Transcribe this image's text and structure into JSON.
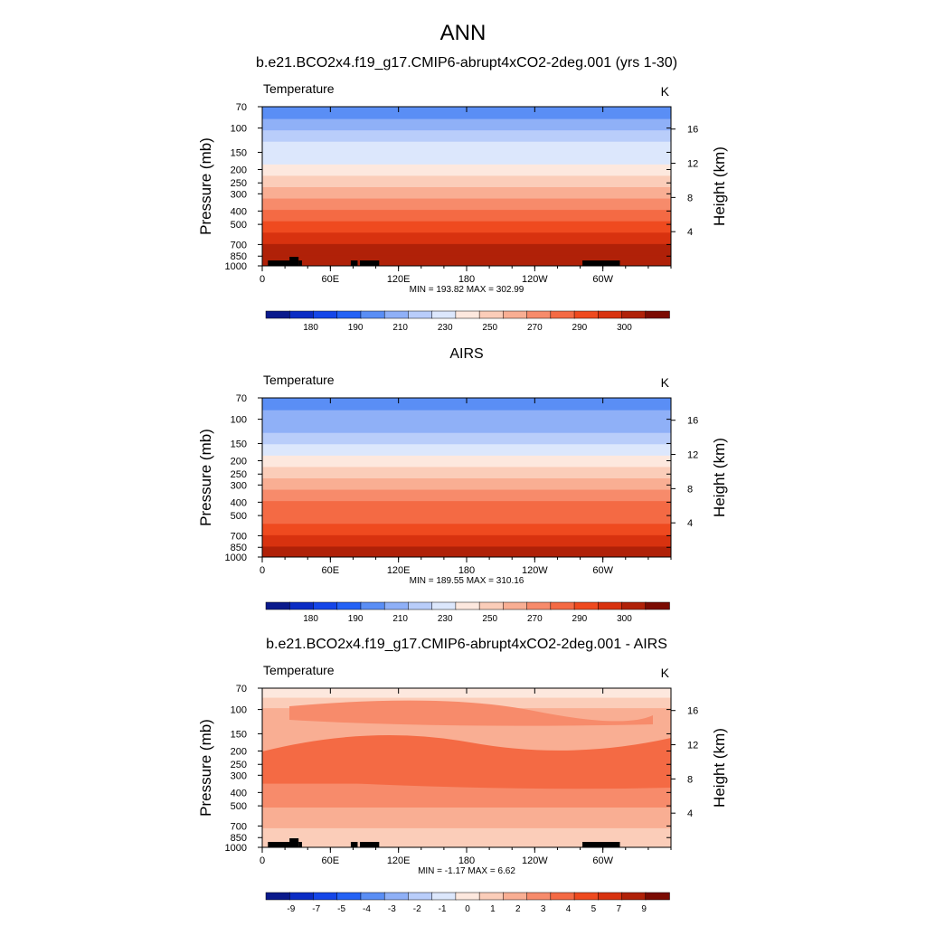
{
  "figure": {
    "title": "ANN"
  },
  "colors": {
    "temperature_levels": [
      "#0a1a8c",
      "#0b2cc4",
      "#1546e8",
      "#2462f5",
      "#5a8ef5",
      "#8fb0f7",
      "#b9cdfa",
      "#dce7fc",
      "#fde8de",
      "#fbcdb9",
      "#f9ae93",
      "#f78b6b",
      "#f46a44",
      "#ef4a1f",
      "#d8320f",
      "#b02108",
      "#7b0b02"
    ],
    "diff_levels": [
      "#0a1a8c",
      "#0b2cc4",
      "#1546e8",
      "#2462f5",
      "#5a8ef5",
      "#8fb0f7",
      "#b9cdfa",
      "#dce7fc",
      "#fde8de",
      "#fbcdb9",
      "#f9ae93",
      "#f78b6b",
      "#f46a44",
      "#ef4a1f",
      "#d8320f",
      "#b02108",
      "#7b0b02"
    ],
    "land": "#000000"
  },
  "chart_data": [
    {
      "type": "heatmap",
      "title": "b.e21.BCO2x4.f19_g17.CMIP6-abrupt4xCO2-2deg.001 (yrs 1-30)",
      "variable_label": "Temperature",
      "units": "K",
      "xlabel": "",
      "ylabel": "Pressure (mb)",
      "ylabel_right": "Height (km)",
      "x_ticks": [
        "0",
        "60E",
        "120E",
        "180",
        "120W",
        "60W"
      ],
      "x_tick_values": [
        0,
        60,
        120,
        180,
        240,
        300
      ],
      "xlim": [
        0,
        360
      ],
      "y_ticks": [
        "70",
        "100",
        "150",
        "200",
        "250",
        "300",
        "400",
        "500",
        "700",
        "850",
        "1000"
      ],
      "y_tick_values": [
        70,
        100,
        150,
        200,
        250,
        300,
        400,
        500,
        700,
        850,
        1000
      ],
      "ylim": [
        1000,
        70
      ],
      "y_right_ticks": [
        "4",
        "8",
        "12",
        "16"
      ],
      "y_right_values": [
        4,
        8,
        12,
        16
      ],
      "min_label": "MIN = 193.82  MAX = 302.99",
      "min": 193.82,
      "max": 302.99,
      "colorbar_labels": [
        "180",
        "190",
        "210",
        "230",
        "250",
        "270",
        "290",
        "300"
      ],
      "field": "abs",
      "bottom_value": 296,
      "top_value": 198,
      "land_mask": true,
      "anomaly": false
    },
    {
      "type": "heatmap",
      "title": "AIRS",
      "variable_label": "Temperature",
      "units": "K",
      "xlabel": "",
      "ylabel": "Pressure (mb)",
      "ylabel_right": "Height (km)",
      "x_ticks": [
        "0",
        "60E",
        "120E",
        "180",
        "120W",
        "60W"
      ],
      "x_tick_values": [
        0,
        60,
        120,
        180,
        240,
        300
      ],
      "xlim": [
        0,
        360
      ],
      "y_ticks": [
        "70",
        "100",
        "150",
        "200",
        "250",
        "300",
        "400",
        "500",
        "700",
        "850",
        "1000"
      ],
      "y_tick_values": [
        70,
        100,
        150,
        200,
        250,
        300,
        400,
        500,
        700,
        850,
        1000
      ],
      "ylim": [
        1000,
        70
      ],
      "y_right_ticks": [
        "4",
        "8",
        "12",
        "16"
      ],
      "y_right_values": [
        4,
        8,
        12,
        16
      ],
      "min_label": "MIN = 189.55  MAX = 310.16",
      "min": 189.55,
      "max": 310.16,
      "colorbar_labels": [
        "180",
        "190",
        "210",
        "230",
        "250",
        "270",
        "290",
        "300"
      ],
      "field": "abs",
      "bottom_value": 293,
      "top_value": 197,
      "land_mask": false,
      "anomaly": false
    },
    {
      "type": "heatmap",
      "title": "b.e21.BCO2x4.f19_g17.CMIP6-abrupt4xCO2-2deg.001 - AIRS",
      "variable_label": "Temperature",
      "units": "K",
      "xlabel": "",
      "ylabel": "Pressure (mb)",
      "ylabel_right": "Height (km)",
      "x_ticks": [
        "0",
        "60E",
        "120E",
        "180",
        "120W",
        "60W"
      ],
      "x_tick_values": [
        0,
        60,
        120,
        180,
        240,
        300
      ],
      "xlim": [
        0,
        360
      ],
      "y_ticks": [
        "70",
        "100",
        "150",
        "200",
        "250",
        "300",
        "400",
        "500",
        "700",
        "850",
        "1000"
      ],
      "y_tick_values": [
        70,
        100,
        150,
        200,
        250,
        300,
        400,
        500,
        700,
        850,
        1000
      ],
      "ylim": [
        1000,
        70
      ],
      "y_right_ticks": [
        "4",
        "8",
        "12",
        "16"
      ],
      "y_right_values": [
        4,
        8,
        12,
        16
      ],
      "min_label": "MIN =  -1.17  MAX =   6.62",
      "min": -1.17,
      "max": 6.62,
      "colorbar_labels": [
        "-9",
        "-7",
        "-5",
        "-4",
        "-3",
        "-2",
        "-1",
        "0",
        "1",
        "2",
        "3",
        "4",
        "5",
        "7",
        "9"
      ],
      "field": "diff",
      "land_mask": true,
      "anomaly": true
    }
  ]
}
